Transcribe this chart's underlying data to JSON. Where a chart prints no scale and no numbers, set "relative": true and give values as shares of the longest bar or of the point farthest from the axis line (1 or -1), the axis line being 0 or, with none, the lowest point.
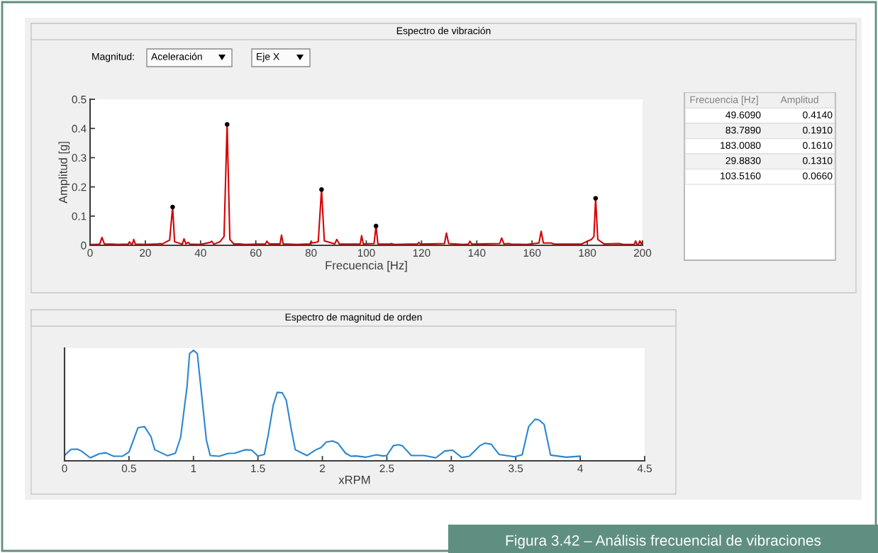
{
  "chart_data": [
    {
      "type": "line",
      "title": "Espectro de vibración",
      "xlabel": "Frecuencia [Hz]",
      "ylabel": "Amplitud [g]",
      "xlim": [
        0,
        200
      ],
      "xticks": [
        0,
        20,
        40,
        60,
        80,
        100,
        120,
        140,
        160,
        180,
        200
      ],
      "ylim": [
        0,
        0.5
      ],
      "yticks": [
        0,
        0.1,
        0.2,
        0.3,
        0.4,
        0.5
      ],
      "grid": false,
      "annotations": [
        "Magnitud:",
        "Aceleración",
        "Eje X"
      ],
      "series": [
        {
          "type": "line",
          "color": "#d40000",
          "x": [
            0,
            2,
            3.5,
            4.3,
            5.2,
            8,
            10,
            13.8,
            14.3,
            14.9,
            15.4,
            15.8,
            16.4,
            20,
            24.5,
            25.3,
            26,
            28.8,
            29.883,
            30.6,
            33.4,
            34,
            34.7,
            35.5,
            36.2,
            40,
            43.5,
            44,
            44.8,
            47,
            48.5,
            49.609,
            50.6,
            52,
            54,
            56,
            63.5,
            64,
            64.8,
            68.8,
            69.3,
            69.9,
            75,
            79.6,
            80,
            80.6,
            82.6,
            83.789,
            84.8,
            88.6,
            89.3,
            90.2,
            95,
            97.8,
            98.3,
            98.9,
            102.8,
            103.516,
            104.2,
            108.6,
            109,
            110,
            118.6,
            119,
            119.6,
            128.3,
            129,
            129.8,
            135,
            137,
            137.5,
            138.2,
            148.3,
            149,
            149.8,
            151.5,
            152.4,
            158,
            162.5,
            163.3,
            164.1,
            167,
            168,
            175,
            178,
            181.5,
            182.4,
            183.008,
            183.8,
            186,
            191.5,
            193,
            197,
            197.5,
            198,
            198.5,
            199,
            199.5,
            200
          ],
          "values": [
            0.003,
            0.003,
            0.004,
            0.027,
            0.004,
            0.004,
            0.003,
            0.004,
            0.012,
            0.004,
            0.006,
            0.02,
            0.004,
            0.003,
            0.005,
            0.006,
            0.004,
            0.018,
            0.131,
            0.012,
            0.004,
            0.022,
            0.005,
            0.01,
            0.004,
            0.003,
            0.01,
            0.014,
            0.004,
            0.012,
            0.03,
            0.414,
            0.02,
            0.005,
            0.005,
            0.003,
            0.005,
            0.014,
            0.005,
            0.005,
            0.035,
            0.005,
            0.003,
            0.005,
            0.012,
            0.008,
            0.012,
            0.191,
            0.015,
            0.005,
            0.02,
            0.005,
            0.004,
            0.005,
            0.033,
            0.005,
            0.006,
            0.066,
            0.005,
            0.004,
            0.006,
            0.003,
            0.005,
            0.01,
            0.004,
            0.006,
            0.042,
            0.006,
            0.003,
            0.004,
            0.014,
            0.004,
            0.006,
            0.025,
            0.005,
            0.006,
            0.004,
            0.003,
            0.008,
            0.048,
            0.008,
            0.008,
            0.004,
            0.004,
            0.005,
            0.02,
            0.03,
            0.161,
            0.02,
            0.005,
            0.006,
            0.003,
            0.003,
            0.015,
            0.003,
            0.003,
            0.015,
            0.005,
            0.012
          ]
        },
        {
          "type": "scatter",
          "color": "#000000",
          "marker": "circle",
          "x": [
            49.609,
            83.789,
            183.008,
            29.883,
            103.516
          ],
          "values": [
            0.414,
            0.191,
            0.161,
            0.131,
            0.066
          ]
        }
      ]
    },
    {
      "type": "other",
      "annotations": [
        "Frecuencia [Hz]",
        "Amplitud",
        "49.6090",
        "0.4140",
        "83.7890",
        "0.1910",
        "183.0080",
        "0.1610",
        "29.8830",
        "0.1310",
        "103.5160",
        "0.0660"
      ]
    },
    {
      "type": "line",
      "relative": true,
      "title": "Espectro de magnitud de orden",
      "xlabel": "xRPM",
      "xlim": [
        0,
        4.5
      ],
      "xticks": [
        0,
        0.5,
        1,
        1.5,
        2,
        2.5,
        3,
        3.5,
        4,
        4.5
      ],
      "tick_labels": "x",
      "grid": false,
      "annotations": [
        "Figura 3.42 – Análisis frecuencial de vibraciones"
      ],
      "series": [
        {
          "type": "line",
          "color": "#2a86cf",
          "x": [
            0,
            0.05,
            0.1,
            0.13,
            0.2,
            0.27,
            0.32,
            0.38,
            0.45,
            0.5,
            0.57,
            0.62,
            0.67,
            0.7,
            0.8,
            0.86,
            0.9,
            0.95,
            0.97,
            1.0,
            1.03,
            1.1,
            1.13,
            1.2,
            1.27,
            1.32,
            1.4,
            1.45,
            1.5,
            1.55,
            1.58,
            1.62,
            1.65,
            1.69,
            1.72,
            1.76,
            1.79,
            1.88,
            1.95,
            1.99,
            2.03,
            2.08,
            2.12,
            2.18,
            2.22,
            2.26,
            2.34,
            2.42,
            2.47,
            2.5,
            2.55,
            2.59,
            2.62,
            2.69,
            2.79,
            2.88,
            2.95,
            3.01,
            3.08,
            3.14,
            3.22,
            3.26,
            3.31,
            3.37,
            3.49,
            3.55,
            3.6,
            3.65,
            3.68,
            3.72,
            3.77,
            3.89,
            4.0
          ],
          "values": [
            0.048,
            0.104,
            0.106,
            0.089,
            0.027,
            0.064,
            0.073,
            0.042,
            0.042,
            0.079,
            0.3,
            0.31,
            0.22,
            0.1,
            0.046,
            0.069,
            0.21,
            0.67,
            0.97,
            1.0,
            0.97,
            0.19,
            0.048,
            0.042,
            0.067,
            0.069,
            0.1,
            0.098,
            0.044,
            0.058,
            0.235,
            0.51,
            0.62,
            0.615,
            0.547,
            0.277,
            0.1,
            0.048,
            0.1,
            0.12,
            0.17,
            0.18,
            0.16,
            0.069,
            0.042,
            0.044,
            0.033,
            0.054,
            0.044,
            0.048,
            0.137,
            0.146,
            0.137,
            0.048,
            0.048,
            0.027,
            0.089,
            0.096,
            0.031,
            0.042,
            0.135,
            0.16,
            0.15,
            0.058,
            0.037,
            0.054,
            0.31,
            0.376,
            0.37,
            0.33,
            0.052,
            0.033,
            0.042
          ]
        }
      ]
    }
  ]
}
